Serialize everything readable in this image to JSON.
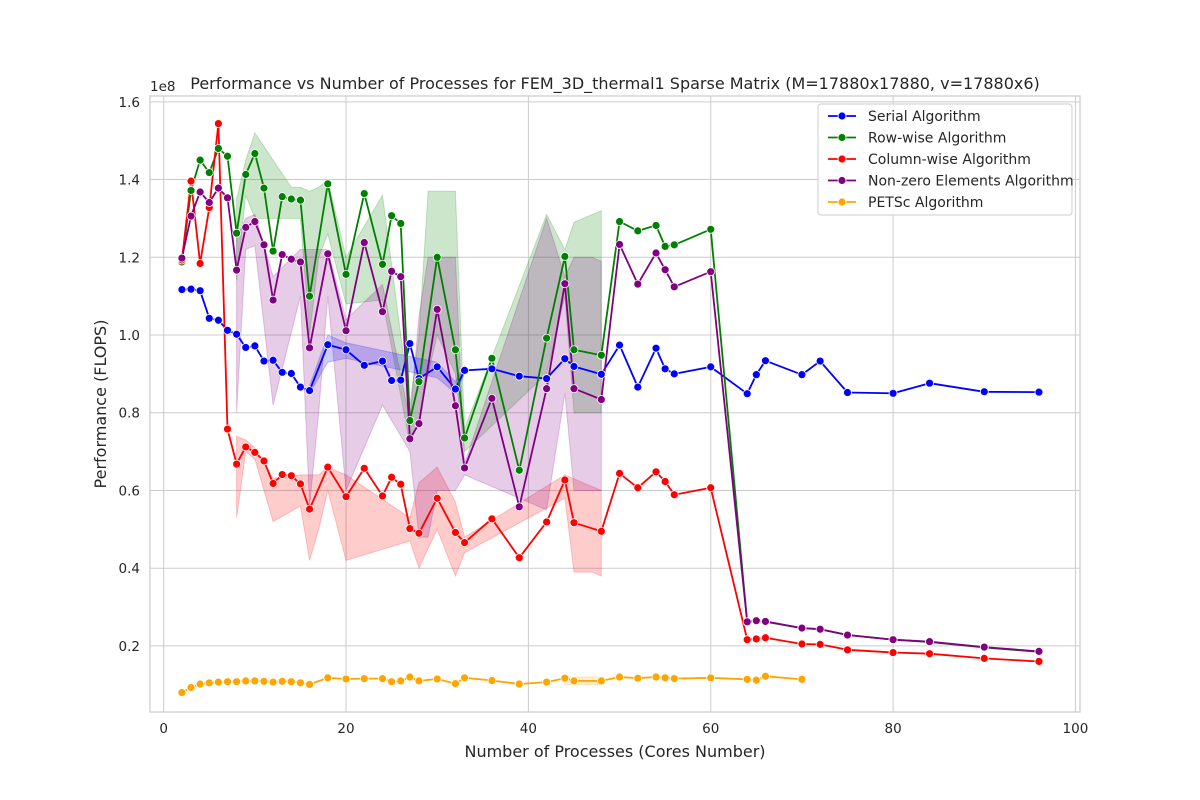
{
  "chart_data": {
    "type": "line",
    "title": "Performance vs Number of Processes for FEM_3D_thermal1 Sparse Matrix (M=17880x17880, v=17880x6)",
    "xlabel": "Number of Processes (Cores Number)",
    "ylabel": "Performance (FLOPS)",
    "y_offset_label": "1e8",
    "xlim": [
      -1.5,
      100.5
    ],
    "ylim": [
      0.03,
      1.615
    ],
    "x_ticks": [
      0,
      20,
      40,
      60,
      80,
      100
    ],
    "x_tick_labels": [
      "0",
      "20",
      "40",
      "60",
      "80",
      "100"
    ],
    "y_ticks": [
      0.2,
      0.4,
      0.6,
      0.8,
      1.0,
      1.2,
      1.4,
      1.6
    ],
    "y_tick_labels": [
      "0.2",
      "0.4",
      "0.6",
      "0.8",
      "1.0",
      "1.2",
      "1.4",
      "1.6"
    ],
    "grid": true,
    "legend_position": "top-right",
    "series": [
      {
        "name": "Serial Algorithm",
        "color": "#0000ff",
        "x": [
          2,
          3,
          4,
          5,
          6,
          7,
          8,
          9,
          10,
          11,
          12,
          13,
          14,
          15,
          16,
          18,
          20,
          22,
          24,
          25,
          26,
          27,
          28,
          30,
          32,
          33,
          36,
          39,
          42,
          44,
          45,
          48,
          50,
          52,
          54,
          55,
          56,
          60,
          64,
          65,
          66,
          70,
          72,
          75,
          80,
          84,
          90,
          96
        ],
        "y": [
          1.117,
          1.118,
          1.114,
          1.043,
          1.038,
          1.012,
          1.002,
          0.968,
          0.972,
          0.933,
          0.935,
          0.904,
          0.901,
          0.866,
          0.857,
          0.975,
          0.962,
          0.922,
          0.933,
          0.883,
          0.884,
          0.978,
          0.888,
          0.918,
          0.861,
          0.909,
          0.913,
          0.894,
          0.888,
          0.939,
          0.919,
          0.899,
          0.974,
          0.866,
          0.966,
          0.913,
          0.9,
          0.918,
          0.849,
          0.898,
          0.934,
          0.898,
          0.933,
          0.852,
          0.85,
          0.876,
          0.854,
          0.853
        ]
      },
      {
        "name": "Row-wise Algorithm",
        "color": "#008000",
        "x": [
          2,
          3,
          4,
          5,
          6,
          7,
          8,
          9,
          10,
          11,
          12,
          13,
          14,
          15,
          16,
          18,
          20,
          22,
          24,
          25,
          26,
          27,
          28,
          30,
          32,
          33,
          36,
          39,
          42,
          44,
          45,
          48,
          50,
          52,
          54,
          55,
          56,
          60,
          64,
          65,
          66,
          70,
          72,
          75,
          80,
          84,
          90,
          96
        ],
        "y": [
          1.188,
          1.372,
          1.45,
          1.418,
          1.48,
          1.46,
          1.262,
          1.413,
          1.467,
          1.378,
          1.216,
          1.356,
          1.35,
          1.347,
          1.1,
          1.389,
          1.156,
          1.364,
          1.182,
          1.307,
          1.287,
          0.78,
          0.88,
          1.2,
          0.962,
          0.735,
          0.94,
          0.652,
          0.992,
          1.202,
          0.962,
          0.948,
          1.292,
          1.268,
          1.282,
          1.228,
          1.232,
          1.272,
          0.261,
          0.264,
          0.262,
          0.246,
          0.243,
          0.228,
          0.216,
          0.21,
          0.196,
          0.185
        ]
      },
      {
        "name": "Column-wise Algorithm",
        "color": "#ff0000",
        "x": [
          2,
          3,
          4,
          5,
          6,
          7,
          8,
          9,
          10,
          11,
          12,
          13,
          14,
          15,
          16,
          18,
          20,
          22,
          24,
          25,
          26,
          27,
          28,
          30,
          32,
          33,
          36,
          39,
          42,
          44,
          45,
          48,
          50,
          52,
          54,
          55,
          56,
          60,
          64,
          65,
          66,
          70,
          72,
          75,
          80,
          84,
          90,
          96
        ],
        "y": [
          1.193,
          1.396,
          1.184,
          1.328,
          1.544,
          0.758,
          0.668,
          0.712,
          0.698,
          0.676,
          0.618,
          0.641,
          0.638,
          0.617,
          0.552,
          0.66,
          0.584,
          0.657,
          0.586,
          0.634,
          0.616,
          0.502,
          0.49,
          0.58,
          0.492,
          0.466,
          0.527,
          0.427,
          0.519,
          0.627,
          0.517,
          0.495,
          0.644,
          0.607,
          0.648,
          0.623,
          0.589,
          0.607,
          0.216,
          0.218,
          0.221,
          0.205,
          0.204,
          0.19,
          0.183,
          0.18,
          0.168,
          0.16
        ]
      },
      {
        "name": "Non-zero Elements Algorithm",
        "color": "#800080",
        "x": [
          2,
          3,
          4,
          5,
          6,
          7,
          8,
          9,
          10,
          11,
          12,
          13,
          14,
          15,
          16,
          18,
          20,
          22,
          24,
          25,
          26,
          27,
          28,
          30,
          32,
          33,
          36,
          39,
          42,
          44,
          45,
          48,
          50,
          52,
          54,
          55,
          56,
          60,
          64,
          65,
          66,
          70,
          72,
          75,
          80,
          84,
          90,
          96
        ],
        "y": [
          1.198,
          1.306,
          1.368,
          1.341,
          1.378,
          1.353,
          1.167,
          1.277,
          1.292,
          1.232,
          1.09,
          1.207,
          1.195,
          1.188,
          0.967,
          1.209,
          1.011,
          1.238,
          1.06,
          1.164,
          1.15,
          0.733,
          0.772,
          1.066,
          0.818,
          0.658,
          0.837,
          0.558,
          0.862,
          1.132,
          0.862,
          0.834,
          1.233,
          1.131,
          1.211,
          1.168,
          1.124,
          1.163,
          0.262,
          0.265,
          0.263,
          0.246,
          0.243,
          0.228,
          0.216,
          0.211,
          0.197,
          0.186
        ]
      },
      {
        "name": "PETSc Algorithm",
        "color": "#ffa500",
        "x": [
          2,
          3,
          4,
          5,
          6,
          7,
          8,
          9,
          10,
          11,
          12,
          13,
          14,
          15,
          16,
          18,
          20,
          22,
          24,
          25,
          26,
          27,
          28,
          30,
          32,
          33,
          36,
          39,
          42,
          44,
          45,
          48,
          50,
          52,
          54,
          55,
          56,
          60,
          64,
          65,
          66,
          70
        ],
        "y": [
          0.08,
          0.093,
          0.102,
          0.105,
          0.107,
          0.108,
          0.108,
          0.11,
          0.11,
          0.109,
          0.107,
          0.109,
          0.108,
          0.105,
          0.101,
          0.118,
          0.115,
          0.116,
          0.116,
          0.108,
          0.11,
          0.12,
          0.11,
          0.115,
          0.103,
          0.118,
          0.111,
          0.102,
          0.107,
          0.117,
          0.11,
          0.11,
          0.12,
          0.117,
          0.12,
          0.118,
          0.116,
          0.118,
          0.114,
          0.112,
          0.122,
          0.114
        ]
      }
    ],
    "bands": [
      {
        "series": "Row-wise Algorithm",
        "color": "#008000",
        "x": [
          8,
          9,
          10,
          14,
          15,
          16,
          17,
          18,
          20,
          24,
          27,
          28,
          29,
          30,
          31,
          32,
          33,
          42,
          44,
          45,
          46,
          47,
          48
        ],
        "lo": [
          1.14,
          1.36,
          1.3,
          1.3,
          1.3,
          1.0,
          1.2,
          1.26,
          1.08,
          1.09,
          0.72,
          0.78,
          0.9,
          1.0,
          0.95,
          0.9,
          0.7,
          0.9,
          1.1,
          0.8,
          0.8,
          0.8,
          0.8
        ],
        "hi": [
          1.35,
          1.45,
          1.52,
          1.38,
          1.38,
          1.37,
          1.38,
          1.4,
          1.2,
          1.36,
          0.82,
          1.0,
          1.37,
          1.37,
          1.37,
          1.37,
          0.76,
          1.31,
          1.22,
          1.29,
          1.3,
          1.31,
          1.32
        ]
      },
      {
        "series": "Column-wise Algorithm",
        "color": "#ff0000",
        "x": [
          8,
          9,
          10,
          12,
          15,
          16,
          17,
          18,
          20,
          27,
          28,
          30,
          32,
          33,
          44,
          45,
          46,
          47,
          48
        ],
        "lo": [
          0.53,
          0.7,
          0.68,
          0.52,
          0.56,
          0.42,
          0.5,
          0.6,
          0.42,
          0.47,
          0.4,
          0.5,
          0.38,
          0.44,
          0.58,
          0.39,
          0.39,
          0.39,
          0.38
        ],
        "hi": [
          0.74,
          0.73,
          0.71,
          0.63,
          0.64,
          0.64,
          0.64,
          0.66,
          0.64,
          0.53,
          0.62,
          0.66,
          0.57,
          0.48,
          0.64,
          0.63,
          0.62,
          0.61,
          0.6
        ]
      },
      {
        "series": "Non-zero Elements Algorithm",
        "color": "#800080",
        "x": [
          8,
          9,
          10,
          12,
          15,
          16,
          17,
          18,
          20,
          24,
          27,
          28,
          29,
          30,
          31,
          32,
          33,
          42,
          44,
          45,
          46,
          47,
          48
        ],
        "lo": [
          0.8,
          1.22,
          1.23,
          0.82,
          1.1,
          0.56,
          0.8,
          1.1,
          0.6,
          0.82,
          0.7,
          0.48,
          0.48,
          0.6,
          0.6,
          0.6,
          0.64,
          0.55,
          0.85,
          0.6,
          0.6,
          0.6,
          0.6
        ],
        "hi": [
          1.25,
          1.3,
          1.31,
          1.15,
          1.22,
          1.22,
          1.22,
          1.22,
          1.04,
          1.13,
          0.78,
          1.05,
          1.2,
          1.2,
          1.2,
          1.2,
          0.67,
          1.3,
          1.15,
          1.2,
          1.2,
          1.2,
          1.19
        ]
      },
      {
        "series": "Serial Algorithm",
        "color": "#0000ff",
        "x": [
          16,
          18,
          20,
          30,
          32,
          33
        ],
        "lo": [
          0.85,
          0.93,
          0.94,
          0.89,
          0.85,
          0.9
        ],
        "hi": [
          0.87,
          1.0,
          0.98,
          0.93,
          0.88,
          0.92
        ]
      },
      {
        "series": "PETSc Algorithm",
        "color": "#ffa500",
        "x": [
          44,
          45,
          46,
          47,
          48
        ],
        "lo": [
          0.1,
          0.1,
          0.1,
          0.1,
          0.1
        ],
        "hi": [
          0.12,
          0.12,
          0.12,
          0.12,
          0.12
        ]
      }
    ]
  }
}
